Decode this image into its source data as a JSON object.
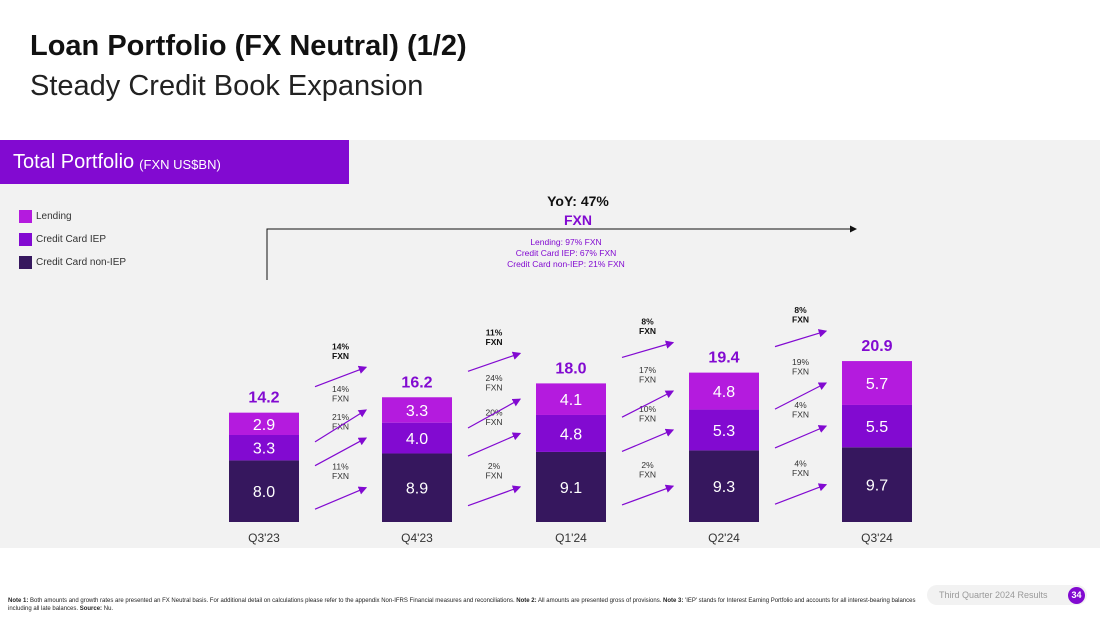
{
  "slide": {
    "title": "Loan Portfolio (FX Neutral) (1/2)",
    "subtitle": "Steady Credit Book Expansion",
    "section_title": "Total Portfolio",
    "section_unit": "(FXN US$BN)"
  },
  "colors": {
    "accent": "#820ad1",
    "lending": "#b41bde",
    "credit_card_iep": "#820ad1",
    "credit_card_non_iep": "#36175e"
  },
  "chart_data": {
    "type": "bar",
    "stacked": true,
    "categories": [
      "Q3'23",
      "Q4'23",
      "Q1'24",
      "Q2'24",
      "Q3'24"
    ],
    "series": [
      {
        "name": "Credit Card non-IEP",
        "values": [
          8.0,
          8.9,
          9.1,
          9.3,
          9.7
        ]
      },
      {
        "name": "Credit Card IEP",
        "values": [
          3.3,
          4.0,
          4.8,
          5.3,
          5.5
        ]
      },
      {
        "name": "Lending",
        "values": [
          2.9,
          3.3,
          4.1,
          4.8,
          5.7
        ]
      }
    ],
    "totals": [
      14.2,
      16.2,
      18.0,
      19.4,
      20.9
    ],
    "legend_placement": "top-left",
    "growth_annotations": [
      {
        "between": [
          "Q3'23",
          "Q4'23"
        ],
        "total": "14%\nFXN",
        "lending": "14%\nFXN",
        "credit_card_iep": "21%\nFXN",
        "credit_card_non_iep": "11%\nFXN"
      },
      {
        "between": [
          "Q4'23",
          "Q1'24"
        ],
        "total": "11%\nFXN",
        "lending": "24%\nFXN",
        "credit_card_iep": "20%\nFXN",
        "credit_card_non_iep": "2%\nFXN"
      },
      {
        "between": [
          "Q1'24",
          "Q2'24"
        ],
        "total": "8%\nFXN",
        "lending": "17%\nFXN",
        "credit_card_iep": "10%\nFXN",
        "credit_card_non_iep": "2%\nFXN"
      },
      {
        "between": [
          "Q2'24",
          "Q3'24"
        ],
        "total": "8%\nFXN",
        "lending": "19%\nFXN",
        "credit_card_iep": "4%\nFXN",
        "credit_card_non_iep": "4%\nFXN"
      }
    ],
    "yoy": {
      "line1": "YoY: 47%",
      "line2": "FXN",
      "details": [
        "Lending: 97% FXN",
        "Credit Card IEP: 67% FXN",
        "Credit Card non-IEP: 21% FXN"
      ]
    }
  },
  "footnote": {
    "parts": [
      {
        "bold": true,
        "text": "Note 1:"
      },
      {
        "bold": false,
        "text": " Both amounts and growth rates are presented an FX Neutral basis. For additional detail on calculations please refer to the appendix Non-IFRS Financial measures and reconciliations. "
      },
      {
        "bold": true,
        "text": "Note 2:"
      },
      {
        "bold": false,
        "text": " All amounts are presented gross of provisions. "
      },
      {
        "bold": true,
        "text": "Note 3:"
      },
      {
        "bold": false,
        "text": " 'IEP' stands for Interest Earning Portfolio and accounts for all interest-bearing balances including all late balances. "
      },
      {
        "bold": true,
        "text": "Source:"
      },
      {
        "bold": false,
        "text": " Nu."
      }
    ]
  },
  "footer": {
    "label": "Third Quarter 2024 Results",
    "page": "34"
  }
}
